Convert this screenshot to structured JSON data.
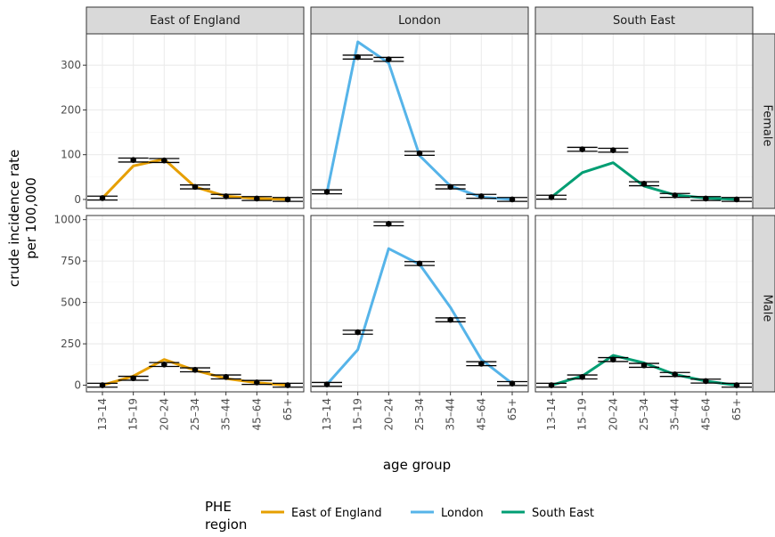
{
  "chart_data": {
    "type": "line",
    "xlabel": "age group",
    "ylabel": [
      "crude incidence rate",
      "per 100,000"
    ],
    "categories": [
      "13–14",
      "15–19",
      "20–24",
      "25–34",
      "35–44",
      "45–64",
      "65+"
    ],
    "columns": [
      "East of England",
      "London",
      "South East"
    ],
    "rows": [
      {
        "name": "Female",
        "yticks": [
          0,
          100,
          200,
          300
        ],
        "ylim": [
          -20,
          370
        ]
      },
      {
        "name": "Male",
        "yticks": [
          0,
          250,
          500,
          750,
          1000
        ],
        "ylim": [
          -40,
          1025
        ]
      }
    ],
    "legend": {
      "title": [
        "PHE",
        "region"
      ],
      "placement": "bottom"
    },
    "colors": {
      "East of England": "#E69F00",
      "London": "#56B4E9",
      "South East": "#009E73"
    },
    "lines": {
      "Female": {
        "East of England": [
          3,
          75,
          90,
          28,
          7,
          2,
          0
        ],
        "London": [
          15,
          352,
          305,
          98,
          30,
          5,
          0
        ],
        "South East": [
          5,
          60,
          82,
          30,
          10,
          3,
          0
        ]
      },
      "Male": {
        "East of England": [
          0,
          55,
          155,
          90,
          40,
          15,
          0
        ],
        "London": [
          5,
          215,
          825,
          730,
          470,
          155,
          10
        ],
        "South East": [
          0,
          55,
          180,
          135,
          65,
          25,
          0
        ]
      }
    },
    "observed": {
      "Female": {
        "East of England": [
          3,
          88,
          87,
          28,
          7,
          2,
          0
        ],
        "London": [
          17,
          318,
          313,
          103,
          28,
          7,
          0
        ],
        "South East": [
          5,
          112,
          110,
          35,
          9,
          2,
          0
        ]
      },
      "Male": {
        "East of England": [
          0,
          42,
          125,
          93,
          50,
          17,
          0
        ],
        "London": [
          5,
          320,
          975,
          735,
          395,
          130,
          10
        ],
        "South East": [
          0,
          50,
          155,
          120,
          65,
          25,
          0
        ]
      }
    }
  }
}
